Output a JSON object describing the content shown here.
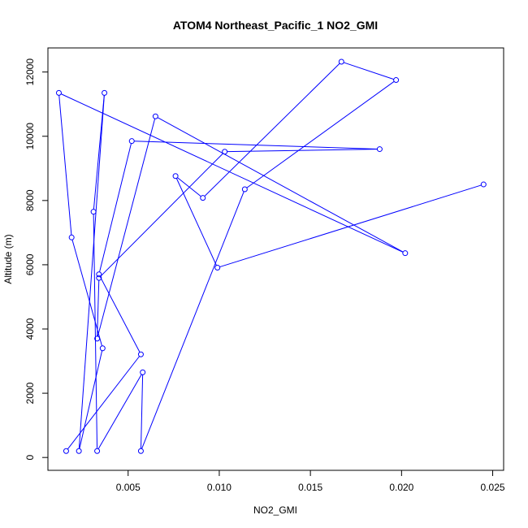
{
  "chart_data": {
    "type": "line",
    "title": "ATOM4 Northeast_Pacific_1 NO2_GMI",
    "xlabel": "NO2_GMI",
    "ylabel": "Altitude (m)",
    "xlim": [
      0.0006,
      0.0256
    ],
    "ylim": [
      -400,
      12750
    ],
    "x_ticks": [
      0.005,
      0.01,
      0.015,
      0.02,
      0.025
    ],
    "x_tick_labels": [
      "0.005",
      "0.010",
      "0.015",
      "0.020",
      "0.025"
    ],
    "y_ticks": [
      0,
      2000,
      4000,
      6000,
      8000,
      10000,
      12000
    ],
    "y_tick_labels": [
      "0",
      "2000",
      "4000",
      "6000",
      "8000",
      "10000",
      "12000"
    ],
    "grid": false,
    "legend": "none",
    "color": "#0000ff",
    "series": [
      {
        "x": [
          0.0016,
          0.0057,
          0.0034,
          0.0052,
          0.0188,
          0.0103,
          0.0034,
          0.0033,
          0.0065,
          0.0202,
          0.0012,
          0.0019,
          0.0036,
          0.0023,
          0.0037,
          0.0031,
          0.0033,
          0.0058,
          0.0057,
          0.0114,
          0.0197,
          0.0167,
          0.0091,
          0.0076,
          0.0099,
          0.0245
        ],
        "y": [
          200,
          3210,
          5700,
          9850,
          9600,
          9520,
          5590,
          3700,
          10620,
          6360,
          11350,
          6850,
          3400,
          200,
          11350,
          7650,
          200,
          2650,
          200,
          8350,
          11750,
          12320,
          8080,
          8760,
          5910,
          8500
        ]
      }
    ]
  }
}
